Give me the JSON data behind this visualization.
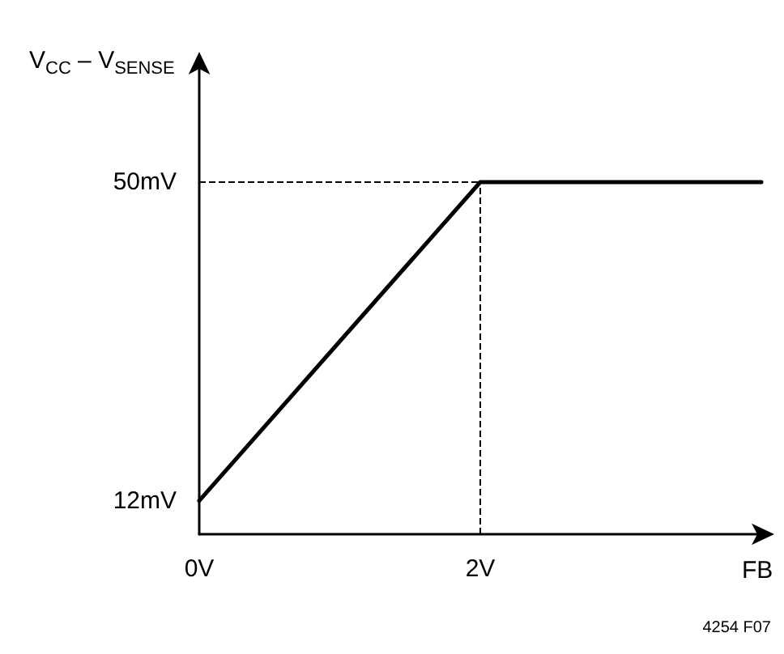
{
  "chart_data": {
    "type": "line",
    "ylabel": "V$_{CC}$ – V$_{SENSE}$",
    "xlabel": "FB",
    "annotations": [
      "4254 F07"
    ],
    "x": [
      0,
      2,
      4
    ],
    "series": [
      {
        "color": "#000000",
        "values": [
          12,
          50,
          50
        ]
      }
    ],
    "xlim": [
      0,
      4
    ],
    "ylim": [
      8,
      64
    ],
    "xticks": [
      {
        "value": 0,
        "label": "0V"
      },
      {
        "value": 2,
        "label": "2V"
      }
    ],
    "yticks": [
      {
        "value": 12,
        "label": "12mV"
      },
      {
        "value": 50,
        "label": "50mV"
      }
    ],
    "ref_lines": [
      {
        "axis": "y",
        "value": 50,
        "color": "#000000",
        "line_style": "dashed"
      },
      {
        "axis": "x",
        "value": 2,
        "color": "#000000",
        "line_style": "dashed"
      }
    ],
    "grid": false,
    "marker": "none",
    "line_style": "solid"
  }
}
